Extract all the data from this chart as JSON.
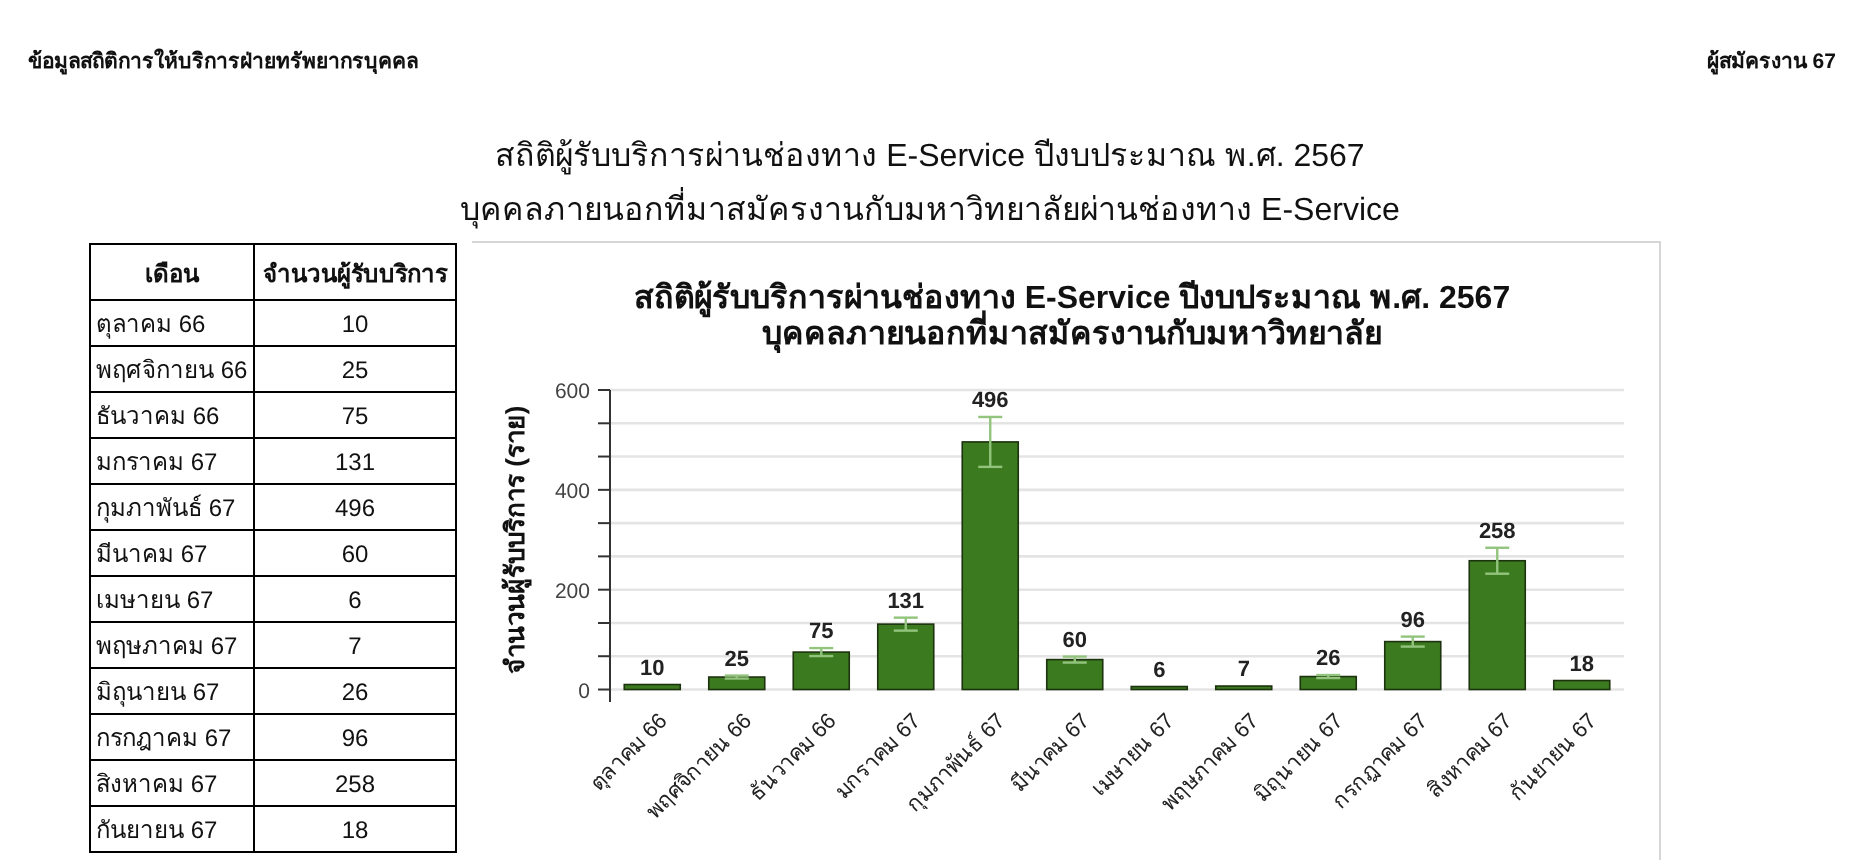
{
  "chart_data": [
    {
      "type": "other",
      "categories": [
        "ตุลาคม 66",
        "พฤศจิกายน 66",
        "ธันวาคม 66",
        "มกราคม 67",
        "กุมภาพันธ์ 67",
        "มีนาคม 67",
        "เมษายน 67",
        "พฤษภาคม 67",
        "มิถุนายน 67",
        "กรกฎาคม 67",
        "สิงหาคม 67",
        "กันยายน 67"
      ],
      "values": [
        10,
        25,
        75,
        131,
        496,
        60,
        6,
        7,
        26,
        96,
        258,
        18
      ],
      "data_labels": true,
      "annotations": [
        "เดือน",
        "จำนวนผู้รับบริการ"
      ]
    },
    {
      "type": "bar",
      "title": "สถิติผู้รับบริการผ่านช่องทาง E-Service ปีงบประมาณ พ.ศ. 2567",
      "subtitle": "บุคคลภายนอกที่มาสมัครงานกับมหาวิทยาลัย",
      "ylabel": "จำนวนผู้รับบริการ (ราย)",
      "categories": [
        "ตุลาคม 66",
        "พฤศจิกายน 66",
        "ธันวาคม 66",
        "มกราคม 67",
        "กุมภาพันธ์ 67",
        "มีนาคม 67",
        "เมษายน 67",
        "พฤษภาคม 67",
        "มิถุนายน 67",
        "กรกฎาคม 67",
        "สิงหาคม 67",
        "กันยายน 67"
      ],
      "values": [
        10,
        25,
        75,
        131,
        496,
        60,
        6,
        7,
        26,
        96,
        258,
        18
      ],
      "errors": [
        null,
        3,
        8,
        13,
        50,
        6,
        null,
        null,
        3,
        10,
        26,
        null
      ],
      "color": "#3b7a1e",
      "ylim": [
        -25,
        600
      ],
      "yticks": [
        0,
        {
          "value": 66.7,
          "label": null
        },
        {
          "value": 133.3,
          "label": null
        },
        200,
        {
          "value": 266.7,
          "label": null
        },
        {
          "value": 333.3,
          "label": null
        },
        400,
        {
          "value": 466.7,
          "label": null
        },
        {
          "value": 533.3,
          "label": null
        },
        600
      ],
      "grid": "y",
      "data_labels": true,
      "annotations": [
        "ข้อมูลสถิติการให้บริการฝ่ายทรัพยากรบุคคล",
        "ผู้สมัครงาน 67",
        "สถิติผู้รับบริการผ่านช่องทาง E-Service ปีงบประมาณ พ.ศ. 2567",
        "บุคคลภายนอกที่มาสมัครงานกับมหาวิทยาลัยผ่านช่องทาง E-Service"
      ]
    }
  ]
}
